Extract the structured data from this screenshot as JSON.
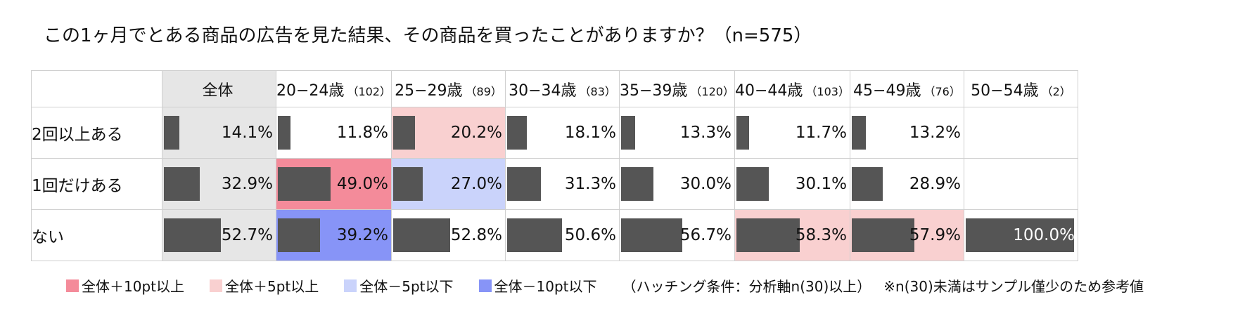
{
  "title": "この1ヶ月でとある商品の広告を見た結果、その商品を買ったことがありますか？（n=575）",
  "colors": {
    "bar": "#555555",
    "overall_bg": "#e6e6e6",
    "plus10": "#f48b9a",
    "plus5": "#f9d0d0",
    "minus5": "#cad3fb",
    "minus10": "#8794f7"
  },
  "chart_data": {
    "type": "table",
    "title": "この1ヶ月でとある商品の広告を見た結果、その商品を買ったことがありますか？（n=575）",
    "columns": [
      {
        "label": "全体",
        "n": ""
      },
      {
        "label": "20−24歳",
        "n": "（102）"
      },
      {
        "label": "25−29歳",
        "n": "（89）"
      },
      {
        "label": "30−34歳",
        "n": "（83）"
      },
      {
        "label": "35−39歳",
        "n": "（120）"
      },
      {
        "label": "40−44歳",
        "n": "（103）"
      },
      {
        "label": "45−49歳",
        "n": "（76）"
      },
      {
        "label": "50−54歳",
        "n": "（2）"
      }
    ],
    "rows": [
      {
        "label": "2回以上ある",
        "values": [
          14.1,
          11.8,
          20.2,
          18.1,
          13.3,
          11.7,
          13.2,
          null
        ],
        "labels": [
          "14.1%",
          "11.8%",
          "20.2%",
          "18.1%",
          "13.3%",
          "11.7%",
          "13.2%",
          ""
        ],
        "highlight": [
          "overall",
          "",
          "plus5",
          "",
          "",
          "",
          "",
          ""
        ]
      },
      {
        "label": "1回だけある",
        "values": [
          32.9,
          49.0,
          27.0,
          31.3,
          30.0,
          30.1,
          28.9,
          null
        ],
        "labels": [
          "32.9%",
          "49.0%",
          "27.0%",
          "31.3%",
          "30.0%",
          "30.1%",
          "28.9%",
          ""
        ],
        "highlight": [
          "overall",
          "plus10",
          "minus5",
          "",
          "",
          "",
          "",
          ""
        ]
      },
      {
        "label": "ない",
        "values": [
          52.7,
          39.2,
          52.8,
          50.6,
          56.7,
          58.3,
          57.9,
          100.0
        ],
        "labels": [
          "52.7%",
          "39.2%",
          "52.8%",
          "50.6%",
          "56.7%",
          "58.3%",
          "57.9%",
          "100.0%"
        ],
        "highlight": [
          "overall",
          "minus10",
          "",
          "",
          "",
          "plus5",
          "plus5",
          ""
        ]
      }
    ],
    "value_range": [
      0,
      100
    ]
  },
  "legend": {
    "items": [
      {
        "label": "全体＋10pt以上",
        "key": "plus10"
      },
      {
        "label": "全体＋5pt以上",
        "key": "plus5"
      },
      {
        "label": "全体－5pt以下",
        "key": "minus5"
      },
      {
        "label": "全体－10pt以下",
        "key": "minus10"
      }
    ],
    "note1": "（ハッチング条件：分析軸n(30)以上）",
    "note2": "※n(30)未満はサンプル僅少のため参考値"
  }
}
